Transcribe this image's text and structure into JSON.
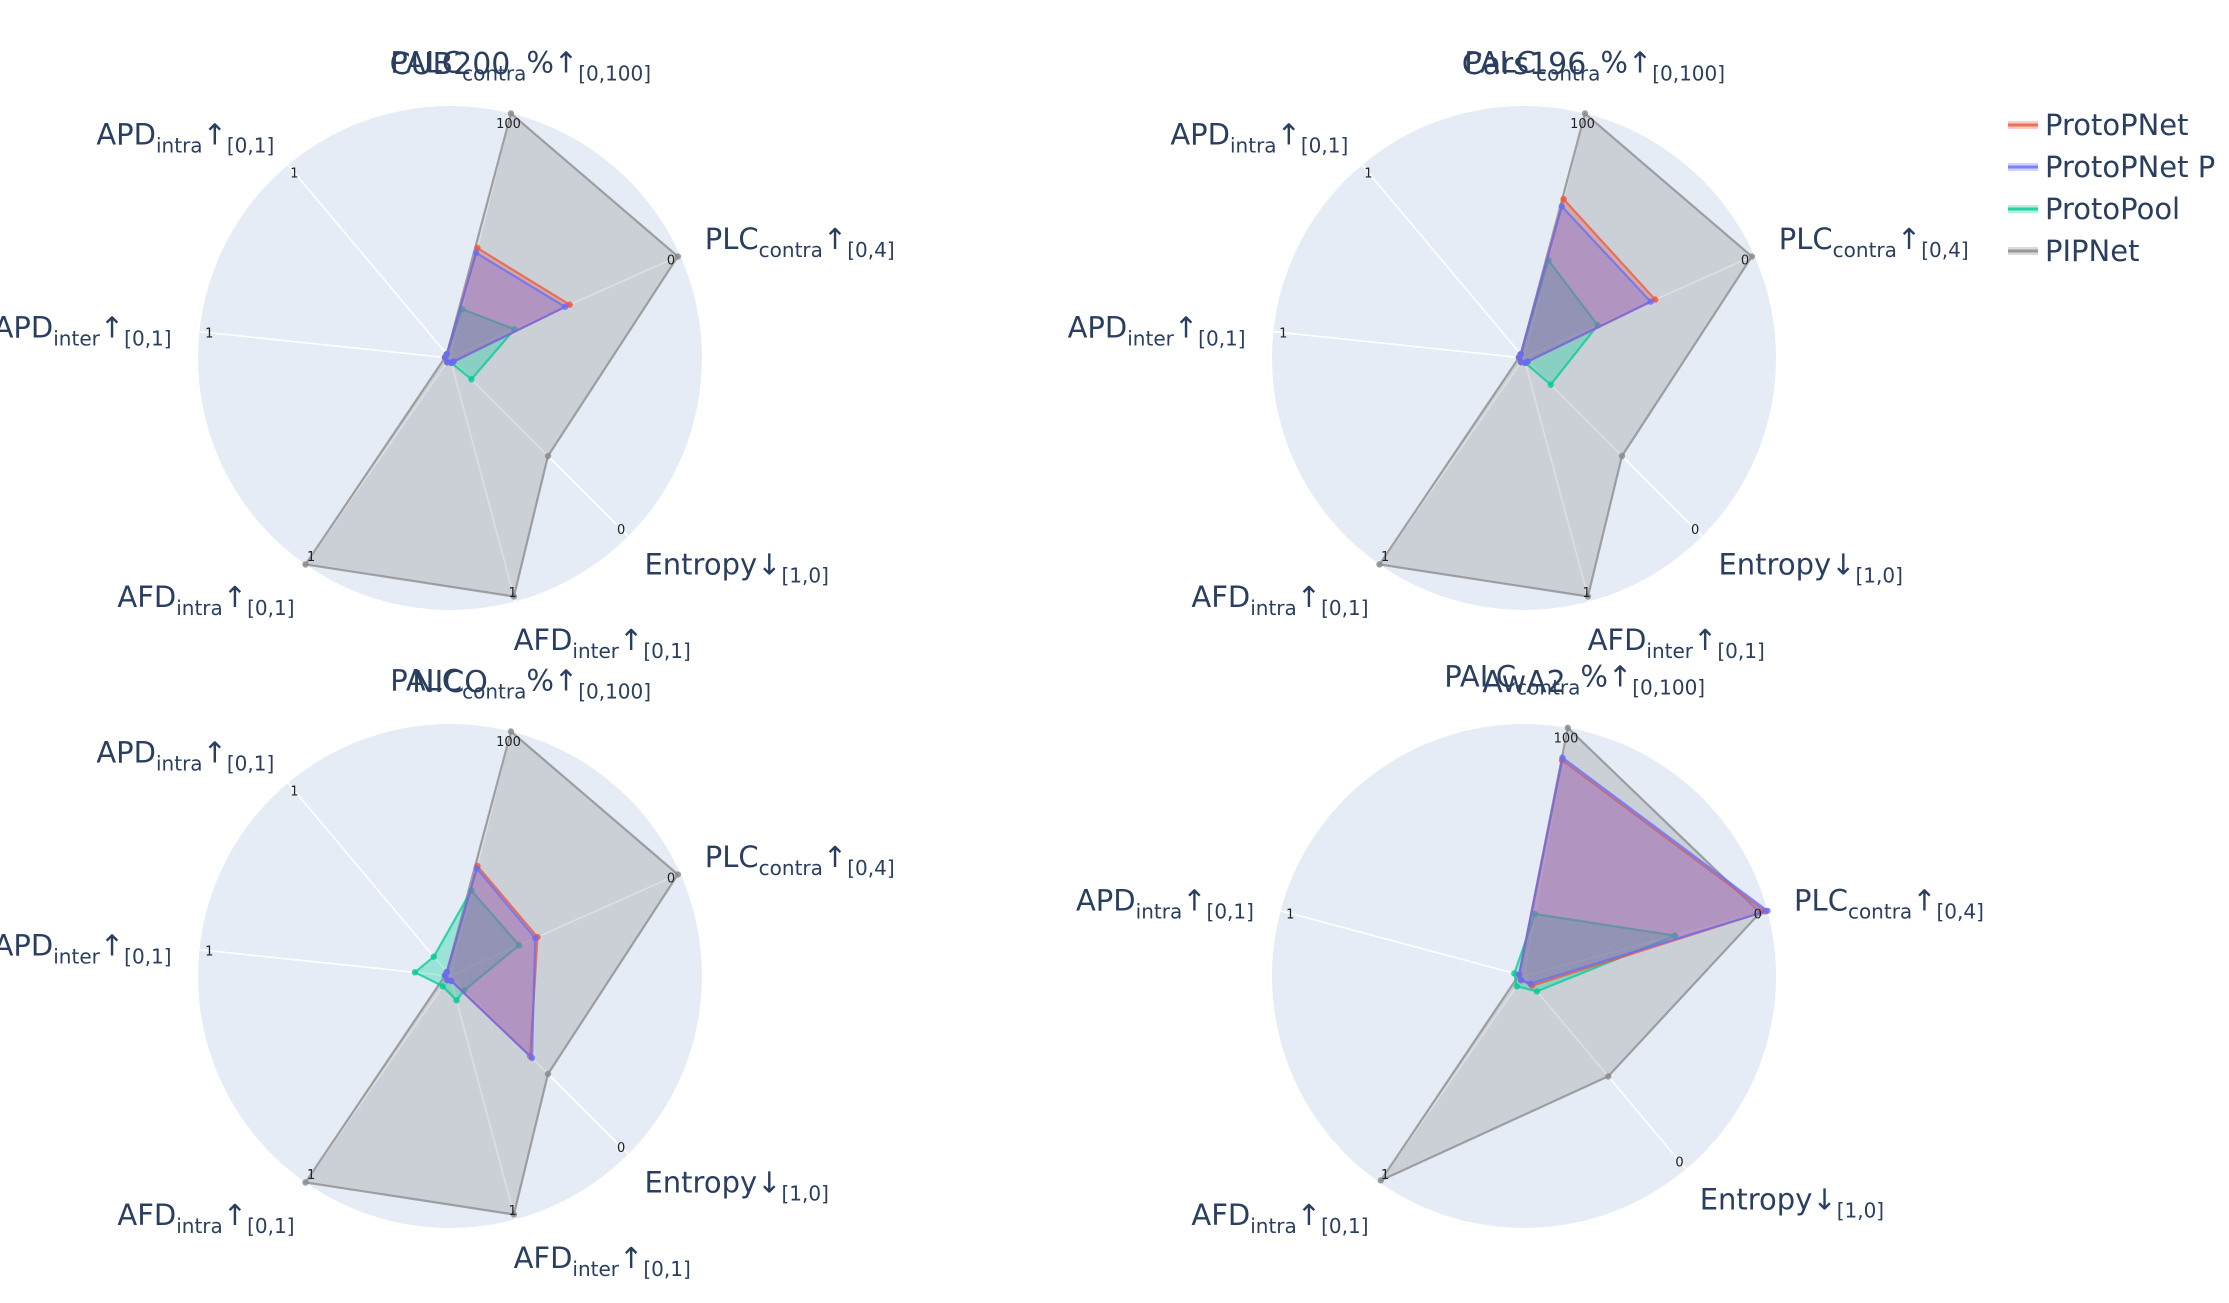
{
  "chart_data": {
    "type": "radar",
    "legend": {
      "placement": "top-right",
      "entries": [
        "ProtoPNet",
        "ProtoPNet P",
        "ProtoPool",
        "PIPNet"
      ],
      "colors": [
        "#ef553b",
        "#636efa",
        "#00cc96",
        "#888888"
      ]
    },
    "series_colors": {
      "ProtoPNet": "#ef553b",
      "ProtoPNet P": "#636efa",
      "ProtoPool": "#00cc96",
      "PIPNet": "#888888"
    },
    "charts": [
      {
        "title": "CUB200",
        "axes": [
          {
            "main": "PALC",
            "sub": "contra",
            "suffix": "%↑",
            "range": "[0,100]",
            "tick": "100"
          },
          {
            "main": "PLC",
            "sub": "contra",
            "suffix": "↑",
            "range": "[0,4]",
            "tick": "0"
          },
          {
            "main": "Entropy",
            "sub": "",
            "suffix": "↓",
            "range": "[1,0]",
            "tick": "0"
          },
          {
            "main": "AFD",
            "sub": "inter",
            "suffix": "↑",
            "range": "[0,1]",
            "tick": "1"
          },
          {
            "main": "AFD",
            "sub": "intra",
            "suffix": "↑",
            "range": "[0,1]",
            "tick": "1"
          },
          {
            "main": "APD",
            "sub": "inter",
            "suffix": "↑",
            "range": "[0,1]",
            "tick": "1"
          },
          {
            "main": "APD",
            "sub": "intra",
            "suffix": "↑",
            "range": "[0,1]",
            "tick": "1"
          }
        ],
        "series": [
          {
            "name": "ProtoPNet",
            "values": [
              0.45,
              0.52,
              0.02,
              0.02,
              0.02,
              0.02,
              0.02
            ]
          },
          {
            "name": "ProtoPNet P",
            "values": [
              0.43,
              0.5,
              0.02,
              0.02,
              0.02,
              0.02,
              0.02
            ]
          },
          {
            "name": "ProtoPool",
            "values": [
              0.2,
              0.28,
              0.12,
              0.02,
              0.02,
              0.02,
              0.02
            ]
          },
          {
            "name": "PIPNet",
            "values": [
              1.0,
              0.99,
              0.55,
              0.98,
              1.0,
              0.02,
              0.02
            ]
          }
        ]
      },
      {
        "title": "Cars196",
        "axes": [
          {
            "main": "PALC",
            "sub": "contra",
            "suffix": "%↑",
            "range": "[0,100]",
            "tick": "100"
          },
          {
            "main": "PLC",
            "sub": "contra",
            "suffix": "↑",
            "range": "[0,4]",
            "tick": "0"
          },
          {
            "main": "Entropy",
            "sub": "",
            "suffix": "↓",
            "range": "[1,0]",
            "tick": "0"
          },
          {
            "main": "AFD",
            "sub": "inter",
            "suffix": "↑",
            "range": "[0,1]",
            "tick": "1"
          },
          {
            "main": "AFD",
            "sub": "intra",
            "suffix": "↑",
            "range": "[0,1]",
            "tick": "1"
          },
          {
            "main": "APD",
            "sub": "inter",
            "suffix": "↑",
            "range": "[0,1]",
            "tick": "1"
          },
          {
            "main": "APD",
            "sub": "intra",
            "suffix": "↑",
            "range": "[0,1]",
            "tick": "1"
          }
        ],
        "series": [
          {
            "name": "ProtoPNet",
            "values": [
              0.65,
              0.57,
              0.02,
              0.02,
              0.02,
              0.02,
              0.02
            ]
          },
          {
            "name": "ProtoPNet P",
            "values": [
              0.62,
              0.55,
              0.02,
              0.02,
              0.02,
              0.02,
              0.02
            ]
          },
          {
            "name": "ProtoPool",
            "values": [
              0.4,
              0.32,
              0.15,
              0.02,
              0.02,
              0.02,
              0.02
            ]
          },
          {
            "name": "PIPNet",
            "values": [
              1.0,
              0.99,
              0.55,
              0.98,
              1.0,
              0.02,
              0.02
            ]
          }
        ]
      },
      {
        "title": "NICO",
        "axes": [
          {
            "main": "PALC",
            "sub": "contra",
            "suffix": "%↑",
            "range": "[0,100]",
            "tick": "100"
          },
          {
            "main": "PLC",
            "sub": "contra",
            "suffix": "↑",
            "range": "[0,4]",
            "tick": "0"
          },
          {
            "main": "Entropy",
            "sub": "",
            "suffix": "↓",
            "range": "[1,0]",
            "tick": "0"
          },
          {
            "main": "AFD",
            "sub": "inter",
            "suffix": "↑",
            "range": "[0,1]",
            "tick": "1"
          },
          {
            "main": "AFD",
            "sub": "intra",
            "suffix": "↑",
            "range": "[0,1]",
            "tick": "1"
          },
          {
            "main": "APD",
            "sub": "inter",
            "suffix": "↑",
            "range": "[0,1]",
            "tick": "1"
          },
          {
            "main": "APD",
            "sub": "intra",
            "suffix": "↑",
            "range": "[0,1]",
            "tick": "1"
          }
        ],
        "series": [
          {
            "name": "ProtoPNet",
            "values": [
              0.45,
              0.38,
              0.45,
              0.02,
              0.02,
              0.02,
              0.02
            ]
          },
          {
            "name": "ProtoPNet P",
            "values": [
              0.44,
              0.37,
              0.46,
              0.02,
              0.02,
              0.02,
              0.02
            ]
          },
          {
            "name": "ProtoPool",
            "values": [
              0.35,
              0.3,
              0.08,
              0.1,
              0.05,
              0.14,
              0.1
            ]
          },
          {
            "name": "PIPNet",
            "values": [
              1.0,
              0.99,
              0.55,
              0.98,
              1.0,
              0.02,
              0.02
            ]
          }
        ]
      },
      {
        "title": "AwA2",
        "axes": [
          {
            "main": "PALC",
            "sub": "contra",
            "suffix": "%↑",
            "range": "[0,100]",
            "tick": "100"
          },
          {
            "main": "PLC",
            "sub": "contra",
            "suffix": "↑",
            "range": "[0,4]",
            "tick": "0"
          },
          {
            "main": "Entropy",
            "sub": "",
            "suffix": "↓",
            "range": "[1,0]",
            "tick": "0"
          },
          {
            "main": "AFD",
            "sub": "intra",
            "suffix": "↑",
            "range": "[0,1]",
            "tick": "1"
          },
          {
            "main": "APD",
            "sub": "intra",
            "suffix": "↑",
            "range": "[0,1]",
            "tick": "1"
          }
        ],
        "series": [
          {
            "name": "ProtoPNet",
            "values": [
              0.87,
              0.99,
              0.05,
              0.02,
              0.02
            ]
          },
          {
            "name": "ProtoPNet P",
            "values": [
              0.88,
              1.0,
              0.04,
              0.02,
              0.02
            ]
          },
          {
            "name": "ProtoPool",
            "values": [
              0.25,
              0.62,
              0.08,
              0.05,
              0.04
            ]
          },
          {
            "name": "PIPNet",
            "values": [
              1.0,
              0.97,
              0.52,
              0.99,
              0.02
            ]
          }
        ]
      }
    ]
  }
}
